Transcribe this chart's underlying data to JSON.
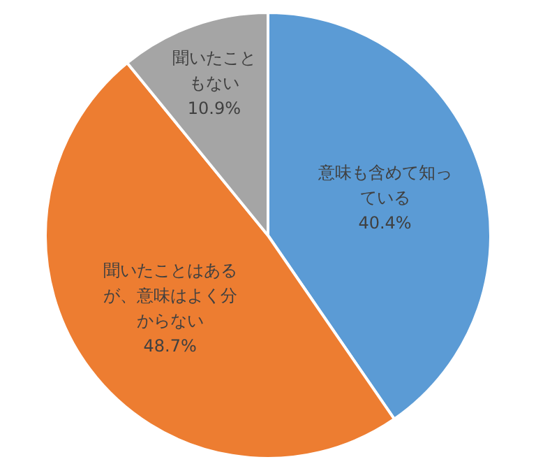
{
  "chart_data": {
    "type": "pie",
    "categories": [
      "意味も含めて知っている",
      "聞いたことはあるが、意味はよく分からない",
      "聞いたこともない"
    ],
    "values": [
      40.4,
      48.7,
      10.9
    ],
    "colors": [
      "#5b9bd5",
      "#ed7d31",
      "#a5a5a5"
    ],
    "value_labels": [
      "40.4%",
      "48.7%",
      "10.9%"
    ],
    "legend": false
  }
}
